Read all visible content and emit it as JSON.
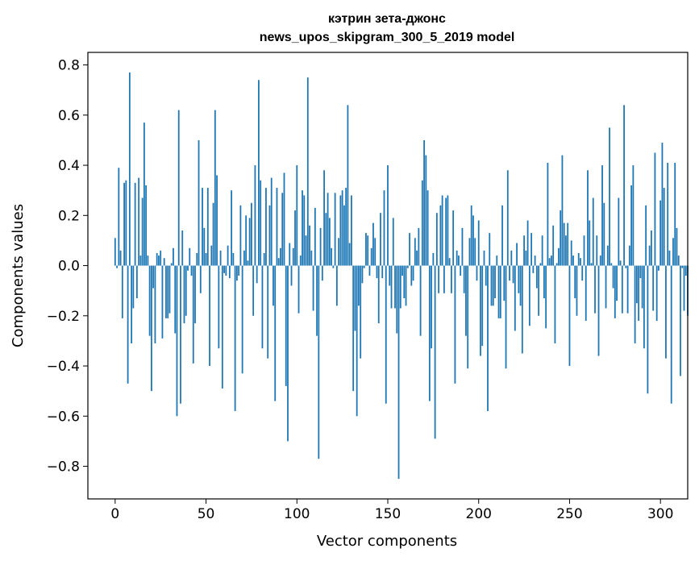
{
  "chart_data": {
    "type": "bar",
    "title_line1": "кэтрин зета-джонс",
    "title_line2": "news_upos_skipgram_300_5_2019 model",
    "xlabel": "Vector components",
    "ylabel": "Components values",
    "xlim": [
      -15,
      315
    ],
    "ylim": [
      -0.93,
      0.85
    ],
    "xticks": [
      0,
      50,
      100,
      150,
      200,
      250,
      300
    ],
    "xtick_labels": [
      "0",
      "50",
      "100",
      "150",
      "200",
      "250",
      "300"
    ],
    "yticks": [
      -0.8,
      -0.6,
      -0.4,
      -0.2,
      0.0,
      0.2,
      0.4,
      0.6,
      0.8
    ],
    "ytick_labels": [
      "−0.8",
      "−0.6",
      "−0.4",
      "−0.2",
      "0.0",
      "0.2",
      "0.4",
      "0.6",
      "0.8"
    ],
    "bar_color": "#1f77b4",
    "values": [
      0.11,
      -0.01,
      0.39,
      0.06,
      -0.21,
      0.33,
      0.34,
      -0.47,
      0.77,
      -0.31,
      -0.17,
      0.33,
      -0.13,
      0.35,
      0.04,
      0.27,
      0.57,
      0.32,
      0.04,
      -0.28,
      -0.5,
      -0.09,
      -0.31,
      0.05,
      0.04,
      0.06,
      -0.29,
      0.03,
      -0.21,
      -0.21,
      -0.19,
      0.01,
      0.07,
      -0.27,
      -0.6,
      0.62,
      -0.55,
      0.14,
      -0.23,
      -0.2,
      -0.02,
      0.07,
      -0.04,
      -0.39,
      -0.23,
      0.05,
      0.5,
      -0.11,
      0.31,
      0.15,
      0.05,
      0.31,
      -0.4,
      0.08,
      0.25,
      0.62,
      0.36,
      -0.33,
      0.06,
      -0.49,
      -0.03,
      -0.04,
      0.08,
      -0.05,
      0.3,
      0.05,
      -0.58,
      -0.06,
      -0.04,
      0.24,
      -0.43,
      0.06,
      0.2,
      0.02,
      0.19,
      0.25,
      -0.2,
      0.4,
      -0.07,
      0.74,
      0.34,
      -0.33,
      0.05,
      0.31,
      -0.37,
      0.24,
      0.35,
      -0.16,
      -0.54,
      0.31,
      0.03,
      0.07,
      0.29,
      0.37,
      -0.48,
      -0.7,
      0.09,
      -0.08,
      0.07,
      0.22,
      0.4,
      -0.19,
      0.04,
      0.3,
      0.28,
      0.12,
      0.75,
      0.16,
      0.06,
      -0.18,
      0.23,
      -0.28,
      -0.77,
      0.15,
      -0.06,
      0.38,
      0.21,
      0.29,
      0.19,
      0.07,
      -0.01,
      0.29,
      -0.16,
      0.11,
      0.28,
      0.3,
      0.24,
      0.31,
      0.64,
      0.09,
      0.28,
      -0.5,
      -0.26,
      -0.6,
      -0.16,
      -0.37,
      -0.07,
      -0.01,
      0.13,
      0.12,
      -0.04,
      0.07,
      0.17,
      0.11,
      -0.05,
      -0.23,
      0.21,
      -0.05,
      0.3,
      -0.55,
      0.4,
      -0.08,
      -0.17,
      0.19,
      -0.17,
      -0.27,
      -0.85,
      -0.17,
      -0.04,
      -0.13,
      -0.16,
      -0.01,
      0.13,
      -0.08,
      -0.06,
      0.11,
      0.06,
      0.15,
      -0.28,
      0.34,
      0.5,
      0.44,
      0.3,
      -0.54,
      -0.33,
      0.05,
      -0.69,
      0.21,
      -0.11,
      0.24,
      0.28,
      -0.11,
      0.27,
      0.28,
      0.03,
      -0.11,
      0.22,
      -0.47,
      0.06,
      0.04,
      -0.04,
      0.15,
      -0.11,
      -0.28,
      -0.41,
      0.11,
      0.24,
      0.2,
      0.11,
      -0.06,
      0.18,
      -0.36,
      -0.32,
      0.06,
      -0.08,
      -0.58,
      0.13,
      -0.16,
      -0.16,
      -0.13,
      0.04,
      -0.21,
      -0.21,
      0.24,
      -0.14,
      -0.41,
      0.38,
      -0.06,
      0.06,
      -0.07,
      -0.26,
      0.09,
      -0.11,
      -0.16,
      -0.35,
      0.12,
      0.06,
      0.18,
      -0.24,
      0.13,
      -0.03,
      0.04,
      -0.09,
      -0.2,
      0.01,
      0.12,
      -0.13,
      -0.25,
      0.41,
      0.03,
      0.04,
      0.16,
      -0.31,
      0.01,
      0.07,
      0.22,
      0.44,
      0.17,
      0.12,
      0.17,
      -0.4,
      0.1,
      0.04,
      -0.13,
      -0.2,
      0.05,
      0.03,
      -0.06,
      0.12,
      -0.22,
      0.38,
      0.18,
      0.01,
      0.27,
      -0.19,
      0.12,
      -0.36,
      0.04,
      0.4,
      0.25,
      -0.17,
      0.08,
      0.55,
      0.01,
      -0.09,
      -0.21,
      -0.14,
      0.27,
      0.02,
      -0.19,
      0.64,
      -0.01,
      -0.19,
      0.08,
      0.32,
      0.4,
      -0.31,
      -0.15,
      -0.22,
      -0.05,
      -0.17,
      -0.33,
      0.24,
      -0.51,
      0.08,
      0.14,
      -0.18,
      0.45,
      -0.22,
      -0.02,
      0.26,
      0.49,
      0.31,
      -0.37,
      0.41,
      0.06,
      -0.55,
      0.11,
      0.41,
      0.15,
      0.04,
      -0.44,
      -0.01,
      -0.18,
      -0.04,
      -0.2
    ]
  }
}
